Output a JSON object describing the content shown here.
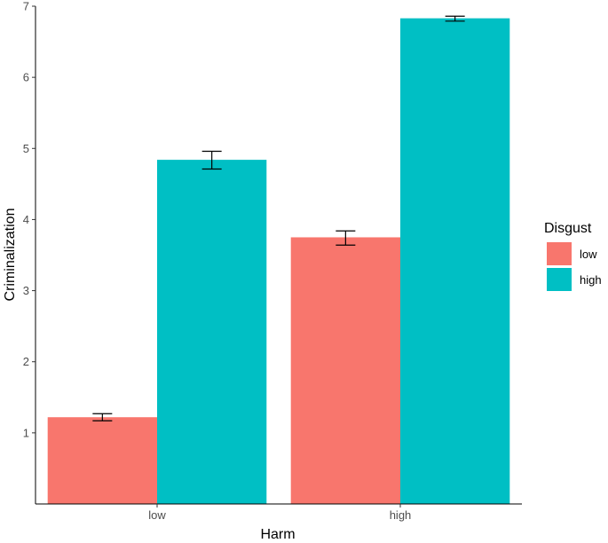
{
  "chart_data": {
    "type": "bar",
    "xlabel": "Harm",
    "ylabel": "Criminalization",
    "categories": [
      "low",
      "high"
    ],
    "ylim": [
      0,
      7
    ],
    "yticks": [
      1,
      2,
      3,
      4,
      5,
      6,
      7
    ],
    "grid": false,
    "legend": {
      "title": "Disgust",
      "placement": "right"
    },
    "series": [
      {
        "name": "low",
        "color": "#F8766D",
        "values": [
          1.22,
          3.75
        ],
        "error": [
          [
            1.17,
            1.27
          ],
          [
            3.64,
            3.84
          ]
        ]
      },
      {
        "name": "high",
        "color": "#00BFC4",
        "values": [
          4.84,
          6.83
        ],
        "error": [
          [
            4.71,
            4.96
          ],
          [
            6.79,
            6.86
          ]
        ]
      }
    ]
  }
}
